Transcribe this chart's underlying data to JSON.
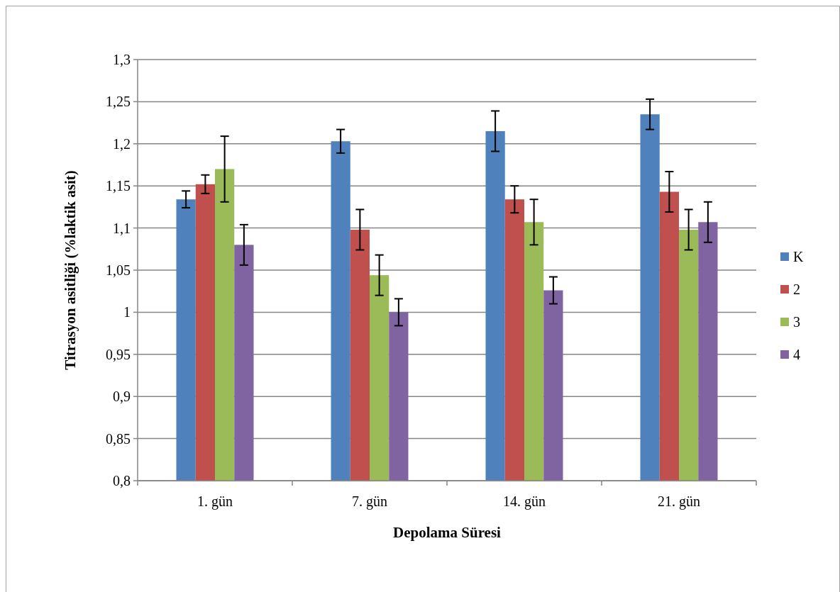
{
  "chart_data": {
    "type": "bar",
    "xlabel": "Depolama Süresi",
    "ylabel": "Titrasyon asitliği (%laktik asit)",
    "categories": [
      "1. gün",
      "7. gün",
      "14. gün",
      "21. gün"
    ],
    "series": [
      {
        "name": "K",
        "color": "#4f81bd",
        "values": [
          1.134,
          1.203,
          1.215,
          1.235
        ],
        "errors": [
          0.01,
          0.014,
          0.024,
          0.018
        ]
      },
      {
        "name": "2",
        "color": "#c0504d",
        "values": [
          1.152,
          1.098,
          1.134,
          1.143
        ],
        "errors": [
          0.011,
          0.024,
          0.016,
          0.024
        ]
      },
      {
        "name": "3",
        "color": "#9bbb59",
        "values": [
          1.17,
          1.044,
          1.107,
          1.098
        ],
        "errors": [
          0.039,
          0.024,
          0.027,
          0.024
        ]
      },
      {
        "name": "4",
        "color": "#8064a2",
        "values": [
          1.08,
          1.0,
          1.026,
          1.107
        ],
        "errors": [
          0.024,
          0.016,
          0.016,
          0.024
        ]
      }
    ],
    "ylim": [
      0.8,
      1.3
    ],
    "yticks": [
      {
        "value": 0.8,
        "label": "0,8"
      },
      {
        "value": 0.85,
        "label": "0,85"
      },
      {
        "value": 0.9,
        "label": "0,9"
      },
      {
        "value": 0.95,
        "label": "0,95"
      },
      {
        "value": 1,
        "label": "1"
      },
      {
        "value": 1.05,
        "label": "1,05"
      },
      {
        "value": 1.1,
        "label": "1,1"
      },
      {
        "value": 1.15,
        "label": "1,15"
      },
      {
        "value": 1.2,
        "label": "1,2"
      },
      {
        "value": 1.25,
        "label": "1,25"
      },
      {
        "value": 1.3,
        "label": "1,3"
      }
    ],
    "grid": "y",
    "legend": "right"
  }
}
